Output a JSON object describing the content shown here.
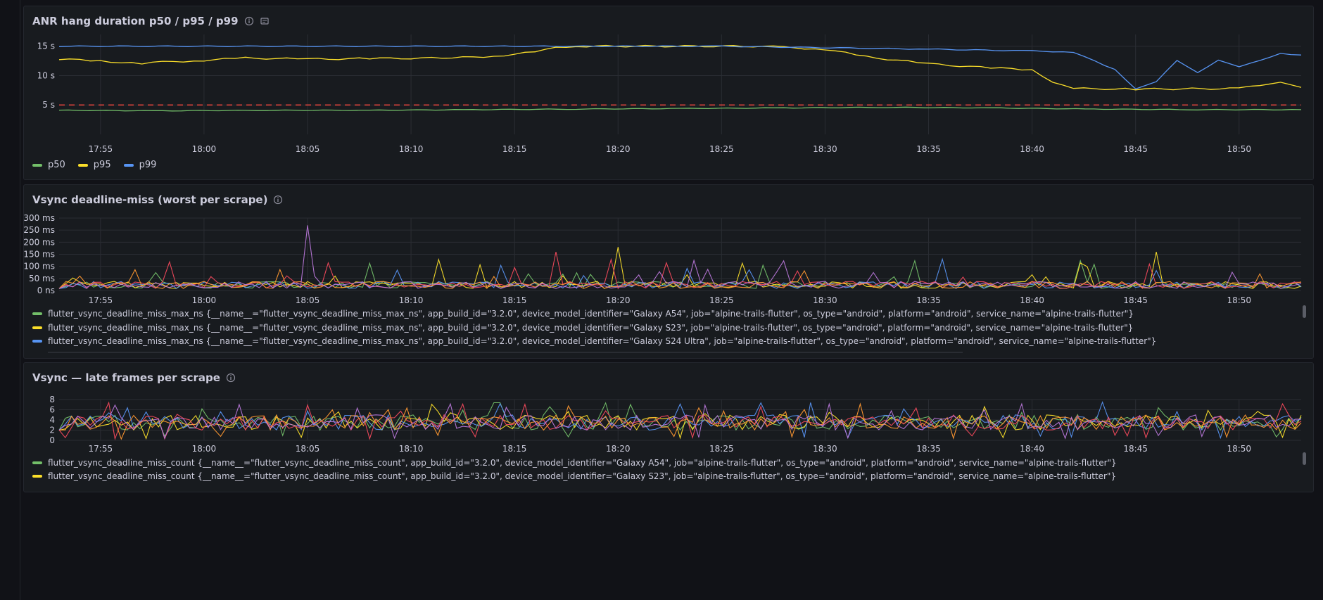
{
  "colors": {
    "green": "#73bf69",
    "yellow": "#fade2a",
    "blue": "#5794f2",
    "red": "#f2495c",
    "orange": "#ff9830",
    "purple": "#b877d9",
    "threshold": "#e0443d"
  },
  "panels": [
    {
      "title": "ANR hang duration p50 / p95 / p99",
      "icons": [
        "info-icon",
        "clipboard-icon"
      ],
      "legend": [
        {
          "label": "p50",
          "color": "#73bf69"
        },
        {
          "label": "p95",
          "color": "#fade2a"
        },
        {
          "label": "p99",
          "color": "#5794f2"
        }
      ]
    },
    {
      "title": "Vsync deadline-miss (worst per scrape)",
      "icons": [
        "info-icon"
      ],
      "legend": [
        {
          "label": "flutter_vsync_deadline_miss_max_ns {__name__=\"flutter_vsync_deadline_miss_max_ns\", app_build_id=\"3.2.0\", device_model_identifier=\"Galaxy A54\", job=\"alpine-trails-flutter\", os_type=\"android\", platform=\"android\", service_name=\"alpine-trails-flutter\"}",
          "color": "#73bf69"
        },
        {
          "label": "flutter_vsync_deadline_miss_max_ns {__name__=\"flutter_vsync_deadline_miss_max_ns\", app_build_id=\"3.2.0\", device_model_identifier=\"Galaxy S23\", job=\"alpine-trails-flutter\", os_type=\"android\", platform=\"android\", service_name=\"alpine-trails-flutter\"}",
          "color": "#fade2a"
        },
        {
          "label": "flutter_vsync_deadline_miss_max_ns {__name__=\"flutter_vsync_deadline_miss_max_ns\", app_build_id=\"3.2.0\", device_model_identifier=\"Galaxy S24 Ultra\", job=\"alpine-trails-flutter\", os_type=\"android\", platform=\"android\", service_name=\"alpine-trails-flutter\"}",
          "color": "#5794f2"
        }
      ]
    },
    {
      "title": "Vsync — late frames per scrape",
      "icons": [
        "info-icon"
      ],
      "legend": [
        {
          "label": "flutter_vsync_deadline_miss_count {__name__=\"flutter_vsync_deadline_miss_count\", app_build_id=\"3.2.0\", device_model_identifier=\"Galaxy A54\", job=\"alpine-trails-flutter\", os_type=\"android\", platform=\"android\", service_name=\"alpine-trails-flutter\"}",
          "color": "#73bf69"
        },
        {
          "label": "flutter_vsync_deadline_miss_count {__name__=\"flutter_vsync_deadline_miss_count\", app_build_id=\"3.2.0\", device_model_identifier=\"Galaxy S23\", job=\"alpine-trails-flutter\", os_type=\"android\", platform=\"android\", service_name=\"alpine-trails-flutter\"}",
          "color": "#fade2a"
        }
      ]
    }
  ],
  "chart_data": [
    {
      "type": "line",
      "title": "ANR hang duration p50 / p95 / p99",
      "x_ticks": [
        "17:55",
        "18:00",
        "18:05",
        "18:10",
        "18:15",
        "18:20",
        "18:25",
        "18:30",
        "18:35",
        "18:40",
        "18:45",
        "18:50"
      ],
      "x_range": [
        "17:53",
        "18:53"
      ],
      "y_ticks": [
        "5 s",
        "10 s",
        "15 s"
      ],
      "ylim": [
        0,
        17
      ],
      "grid": true,
      "legend_placement": "bottom-left",
      "threshold": {
        "value": 5,
        "style": "dashed",
        "color": "#e0443d"
      },
      "series": [
        {
          "name": "p50",
          "color": "#73bf69",
          "x": [
            "17:53",
            "17:58",
            "18:03",
            "18:08",
            "18:13",
            "18:18",
            "18:23",
            "18:28",
            "18:33",
            "18:38",
            "18:43",
            "18:48",
            "18:53"
          ],
          "values": [
            4.1,
            4.0,
            4.1,
            4.1,
            4.2,
            4.3,
            4.4,
            4.5,
            4.6,
            4.5,
            4.3,
            4.2,
            4.2
          ]
        },
        {
          "name": "p95",
          "color": "#fade2a",
          "x": [
            "17:53",
            "17:55",
            "17:57",
            "17:58",
            "18:00",
            "18:02",
            "18:05",
            "18:08",
            "18:12",
            "18:14",
            "18:16",
            "18:17",
            "18:18",
            "18:27",
            "18:28",
            "18:30",
            "18:32",
            "18:35",
            "18:38",
            "18:40",
            "18:41",
            "18:42",
            "18:45",
            "18:50",
            "18:52",
            "18:53"
          ],
          "values": [
            12.8,
            12.5,
            12.0,
            12.3,
            12.6,
            13.0,
            12.8,
            12.9,
            13.0,
            13.3,
            14.0,
            14.7,
            15.0,
            15.0,
            14.8,
            14.5,
            13.2,
            12.0,
            11.3,
            11.0,
            9.0,
            7.8,
            7.7,
            7.8,
            9.0,
            8.0
          ]
        },
        {
          "name": "p99",
          "color": "#5794f2",
          "x": [
            "17:53",
            "18:15",
            "18:25",
            "18:35",
            "18:40",
            "18:42",
            "18:44",
            "18:45",
            "18:46",
            "18:47",
            "18:48",
            "18:49",
            "18:50",
            "18:51",
            "18:52",
            "18:53"
          ],
          "values": [
            15.0,
            15.0,
            15.0,
            14.5,
            14.2,
            14.0,
            11.0,
            7.8,
            9.0,
            12.5,
            10.5,
            12.7,
            11.5,
            12.5,
            13.8,
            13.5
          ]
        }
      ]
    },
    {
      "type": "line",
      "title": "Vsync deadline-miss (worst per scrape)",
      "x_ticks": [
        "17:55",
        "18:00",
        "18:05",
        "18:10",
        "18:15",
        "18:20",
        "18:25",
        "18:30",
        "18:35",
        "18:40",
        "18:45",
        "18:50"
      ],
      "x_range": [
        "17:53",
        "18:53"
      ],
      "y_ticks": [
        "0 ns",
        "50 ms",
        "100 ms",
        "150 ms",
        "200 ms",
        "250 ms",
        "300 ms"
      ],
      "ylim": [
        0,
        300
      ],
      "grid": true,
      "legend_placement": "bottom",
      "series_count": 6,
      "highlight_peaks": [
        {
          "x": "18:05",
          "value": 270,
          "color": "#b877d9"
        },
        {
          "x": "18:20",
          "value": 180,
          "color": "#fade2a"
        },
        {
          "x": "18:17",
          "value": 160,
          "color": "#f2495c"
        },
        {
          "x": "18:46",
          "value": 160,
          "color": "#fade2a"
        }
      ]
    },
    {
      "type": "line",
      "title": "Vsync — late frames per scrape",
      "x_ticks": [
        "17:55",
        "18:00",
        "18:05",
        "18:10",
        "18:15",
        "18:20",
        "18:25",
        "18:30",
        "18:35",
        "18:40",
        "18:45",
        "18:50"
      ],
      "x_range": [
        "17:53",
        "18:53"
      ],
      "y_ticks": [
        "0",
        "2",
        "4",
        "6",
        "8"
      ],
      "ylim": [
        0,
        8
      ],
      "grid": true,
      "legend_placement": "bottom",
      "series_count": 6,
      "value_band": [
        1,
        7
      ]
    }
  ]
}
